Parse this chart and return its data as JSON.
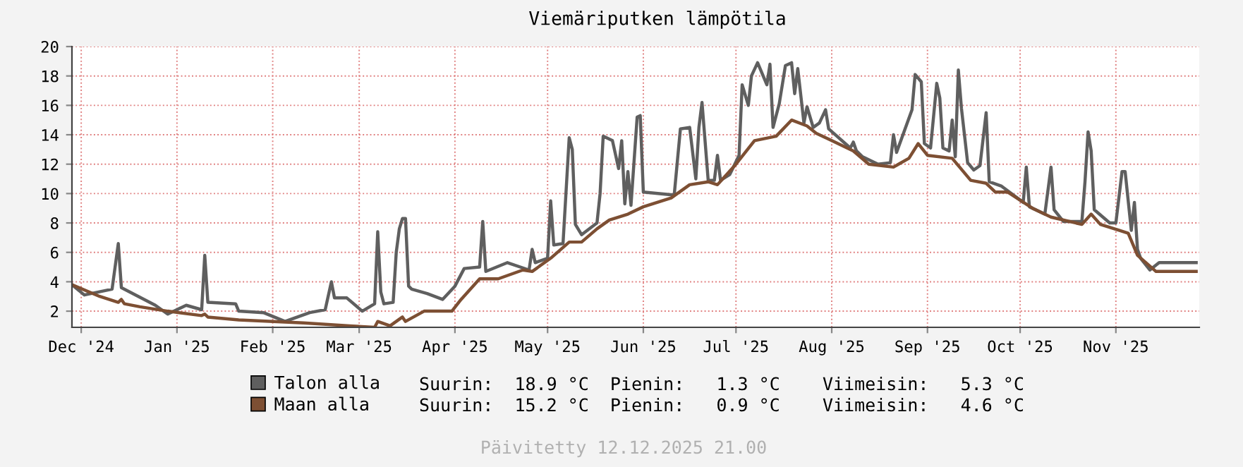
{
  "chart_data": {
    "type": "line",
    "title": "Viemäriputken lämpötila",
    "xlim": [
      "2024-12-12",
      "2025-12-12"
    ],
    "xticks": [
      {
        "value": "2024-12-15",
        "label": "Dec '24"
      },
      {
        "value": "2025-01-15",
        "label": "Jan '25"
      },
      {
        "value": "2025-02-15",
        "label": "Feb '25"
      },
      {
        "value": "2025-03-15",
        "label": "Mar '25"
      },
      {
        "value": "2025-04-15",
        "label": "Apr '25"
      },
      {
        "value": "2025-05-15",
        "label": "May '25"
      },
      {
        "value": "2025-06-15",
        "label": "Jun '25"
      },
      {
        "value": "2025-07-15",
        "label": "Jul '25"
      },
      {
        "value": "2025-08-15",
        "label": "Aug '25"
      },
      {
        "value": "2025-09-15",
        "label": "Sep '25"
      },
      {
        "value": "2025-10-15",
        "label": "Oct '25"
      },
      {
        "value": "2025-11-15",
        "label": "Nov '25"
      }
    ],
    "ylim": [
      0.9,
      20
    ],
    "yticks": [
      2,
      4,
      6,
      8,
      10,
      12,
      14,
      16,
      18,
      20
    ],
    "grid": true,
    "legend": "bottom",
    "marker": "none",
    "line_style": "solid",
    "series": [
      {
        "name": "Talon alla",
        "color": "#5f5f5f",
        "x": [
          "2024-12-12",
          "2024-12-16",
          "2024-12-25",
          "2024-12-27",
          "2024-12-28",
          "2025-01-08",
          "2025-01-12",
          "2025-01-18",
          "2025-01-23",
          "2025-01-24",
          "2025-01-25",
          "2025-02-03",
          "2025-02-04",
          "2025-02-12",
          "2025-02-19",
          "2025-02-27",
          "2025-03-04",
          "2025-03-06",
          "2025-03-07",
          "2025-03-11",
          "2025-03-16",
          "2025-03-20",
          "2025-03-21",
          "2025-03-22",
          "2025-03-23",
          "2025-03-26",
          "2025-03-27",
          "2025-03-28",
          "2025-03-29",
          "2025-03-30",
          "2025-03-31",
          "2025-04-01",
          "2025-04-06",
          "2025-04-11",
          "2025-04-15",
          "2025-04-18",
          "2025-04-23",
          "2025-04-24",
          "2025-04-25",
          "2025-05-02",
          "2025-05-09",
          "2025-05-10",
          "2025-05-11",
          "2025-05-15",
          "2025-05-16",
          "2025-05-17",
          "2025-05-20",
          "2025-05-22",
          "2025-05-23",
          "2025-05-24",
          "2025-05-26",
          "2025-05-31",
          "2025-06-01",
          "2025-06-02",
          "2025-06-05",
          "2025-06-07",
          "2025-06-08",
          "2025-06-09",
          "2025-06-10",
          "2025-06-11",
          "2025-06-13",
          "2025-06-14",
          "2025-06-15",
          "2025-06-25",
          "2025-06-27",
          "2025-06-30",
          "2025-07-02",
          "2025-07-03",
          "2025-07-04",
          "2025-07-06",
          "2025-07-08",
          "2025-07-09",
          "2025-07-10",
          "2025-07-13",
          "2025-07-16",
          "2025-07-17",
          "2025-07-19",
          "2025-07-20",
          "2025-07-22",
          "2025-07-25",
          "2025-07-26",
          "2025-07-27",
          "2025-07-29",
          "2025-07-31",
          "2025-08-02",
          "2025-08-03",
          "2025-08-04",
          "2025-08-06",
          "2025-08-07",
          "2025-08-09",
          "2025-08-11",
          "2025-08-13",
          "2025-08-14",
          "2025-08-21",
          "2025-08-22",
          "2025-08-23",
          "2025-08-25",
          "2025-08-30",
          "2025-09-03",
          "2025-09-04",
          "2025-09-05",
          "2025-09-10",
          "2025-09-11",
          "2025-09-13",
          "2025-09-14",
          "2025-09-16",
          "2025-09-18",
          "2025-09-19",
          "2025-09-20",
          "2025-09-22",
          "2025-09-23",
          "2025-09-24",
          "2025-09-25",
          "2025-09-26",
          "2025-09-28",
          "2025-09-30",
          "2025-10-02",
          "2025-10-04",
          "2025-10-05",
          "2025-10-09",
          "2025-10-16",
          "2025-10-17",
          "2025-10-18",
          "2025-10-23",
          "2025-10-25",
          "2025-10-26",
          "2025-10-29",
          "2025-11-04",
          "2025-11-05",
          "2025-11-06",
          "2025-11-07",
          "2025-11-08",
          "2025-11-13",
          "2025-11-15",
          "2025-11-17",
          "2025-11-18",
          "2025-11-20",
          "2025-11-21",
          "2025-11-22",
          "2025-11-23",
          "2025-11-26",
          "2025-11-29",
          "2025-12-11"
        ],
        "values": [
          3.8,
          3.1,
          3.5,
          6.6,
          3.6,
          2.4,
          1.8,
          2.4,
          2.1,
          5.8,
          2.6,
          2.5,
          2.0,
          1.9,
          1.3,
          1.9,
          2.1,
          4.0,
          2.9,
          2.9,
          2.0,
          2.5,
          7.4,
          3.3,
          2.5,
          2.6,
          6.0,
          7.6,
          8.3,
          8.3,
          3.7,
          3.5,
          3.2,
          2.8,
          3.7,
          4.9,
          5.0,
          8.1,
          4.7,
          5.3,
          4.8,
          6.2,
          5.3,
          5.6,
          9.5,
          6.5,
          6.6,
          13.8,
          13.0,
          7.9,
          7.2,
          8.0,
          10.0,
          13.9,
          13.6,
          11.7,
          13.6,
          9.3,
          11.5,
          9.2,
          15.2,
          15.3,
          10.1,
          9.9,
          14.4,
          14.5,
          11.0,
          14.5,
          16.2,
          10.9,
          10.9,
          12.6,
          10.9,
          11.3,
          12.6,
          17.4,
          16.0,
          18.0,
          18.9,
          17.4,
          18.8,
          14.5,
          16.1,
          18.7,
          18.9,
          16.8,
          18.5,
          14.8,
          15.9,
          14.5,
          14.8,
          15.7,
          14.4,
          13.1,
          13.5,
          12.9,
          12.5,
          12.0,
          12.1,
          14.0,
          12.8,
          15.7,
          18.1,
          17.6,
          13.4,
          13.1,
          17.5,
          16.5,
          13.1,
          12.9,
          15.0,
          12.5,
          18.4,
          15.8,
          12.1,
          11.6,
          11.9,
          15.5,
          10.8,
          10.5,
          9.4,
          11.8,
          9.1,
          8.6,
          11.8,
          8.9,
          8.1,
          8.1,
          10.8,
          14.2,
          12.9,
          8.9,
          8.0,
          8.0,
          11.5,
          11.5,
          7.5,
          9.4,
          6.2,
          5.6,
          4.8,
          5.3,
          5.3
        ]
      },
      {
        "name": "Maan alla",
        "color": "#7d4f33",
        "x": [
          "2024-12-12",
          "2024-12-21",
          "2024-12-27",
          "2024-12-28",
          "2024-12-29",
          "2025-01-03",
          "2025-01-12",
          "2025-01-23",
          "2025-01-24",
          "2025-01-25",
          "2025-02-04",
          "2025-02-25",
          "2025-03-12",
          "2025-03-20",
          "2025-03-21",
          "2025-03-25",
          "2025-03-29",
          "2025-03-30",
          "2025-04-05",
          "2025-04-14",
          "2025-04-17",
          "2025-04-23",
          "2025-04-29",
          "2025-05-07",
          "2025-05-10",
          "2025-05-16",
          "2025-05-22",
          "2025-05-26",
          "2025-05-31",
          "2025-06-04",
          "2025-06-10",
          "2025-06-15",
          "2025-06-24",
          "2025-06-30",
          "2025-07-06",
          "2025-07-09",
          "2025-07-15",
          "2025-07-21",
          "2025-07-28",
          "2025-08-02",
          "2025-08-07",
          "2025-08-10",
          "2025-08-15",
          "2025-08-22",
          "2025-08-27",
          "2025-09-04",
          "2025-09-09",
          "2025-09-12",
          "2025-09-15",
          "2025-09-23",
          "2025-09-29",
          "2025-10-04",
          "2025-10-07",
          "2025-10-11",
          "2025-10-19",
          "2025-10-25",
          "2025-11-04",
          "2025-11-07",
          "2025-11-10",
          "2025-11-16",
          "2025-11-19",
          "2025-11-22",
          "2025-11-28",
          "2025-12-11"
        ],
        "values": [
          3.8,
          3.0,
          2.6,
          2.8,
          2.5,
          2.3,
          2.0,
          1.7,
          1.8,
          1.6,
          1.4,
          1.2,
          1.0,
          0.9,
          1.3,
          1.0,
          1.6,
          1.3,
          2.0,
          2.0,
          2.8,
          4.2,
          4.2,
          4.8,
          4.7,
          5.6,
          6.7,
          6.7,
          7.6,
          8.2,
          8.6,
          9.1,
          9.7,
          10.6,
          10.8,
          10.6,
          12.0,
          13.6,
          13.9,
          15.0,
          14.6,
          14.1,
          13.6,
          12.9,
          12.0,
          11.8,
          12.4,
          13.4,
          12.6,
          12.4,
          10.9,
          10.7,
          10.1,
          10.1,
          9.0,
          8.4,
          7.9,
          8.6,
          7.9,
          7.5,
          7.3,
          5.8,
          4.7,
          4.7
        ]
      }
    ],
    "annotations": [
      "Suurin:  18.9 °C  Pienin:   1.3 °C    Viimeisin:   5.3 °C",
      "Suurin:  15.2 °C  Pienin:   0.9 °C    Viimeisin:   4.6 °C",
      "Päivitetty 12.12.2025 21.00"
    ]
  }
}
